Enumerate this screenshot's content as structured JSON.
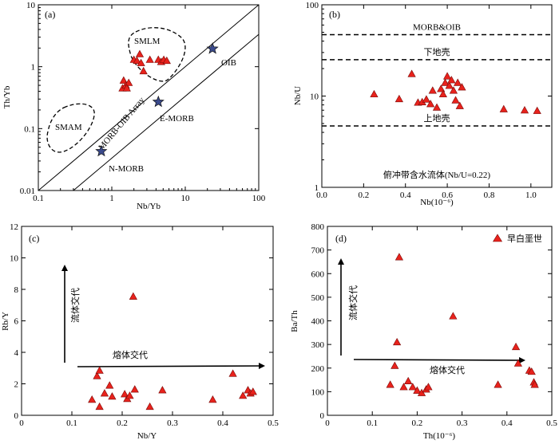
{
  "colors": {
    "marker_fill": "#e8221c",
    "marker_stroke": "#7a0a08",
    "star_fill": "#3a4a8c",
    "axis": "#000000"
  },
  "chart_data": [
    {
      "id": "a",
      "type": "scatter",
      "panel_label": "(a)",
      "xlabel": "Nb/Yb",
      "ylabel": "Th/Yb",
      "xscale": "log",
      "yscale": "log",
      "xlim": [
        0.1,
        100
      ],
      "ylim": [
        0.01,
        10
      ],
      "x_ticks": [
        0.1,
        1,
        10,
        100
      ],
      "x_tick_labels": [
        "0.1",
        "1",
        "10",
        "100"
      ],
      "y_ticks": [
        0.01,
        0.1,
        1,
        10
      ],
      "y_tick_labels": [
        "0.01",
        "0.1",
        "1",
        "10"
      ],
      "annotations": {
        "smlm": "SMLM",
        "smam": "SMAM",
        "array": "MORB-OIB Array",
        "oib": "OIB",
        "emorb": "E-MORB",
        "nmorb": "N-MORB"
      },
      "reference_points": [
        {
          "label": "N-MORB",
          "x": 0.72,
          "y": 0.043
        },
        {
          "label": "E-MORB",
          "x": 4.3,
          "y": 0.27
        },
        {
          "label": "OIB",
          "x": 23.5,
          "y": 1.95
        }
      ],
      "points": [
        {
          "x": 1.4,
          "y": 0.45
        },
        {
          "x": 1.45,
          "y": 0.6
        },
        {
          "x": 1.55,
          "y": 0.5
        },
        {
          "x": 1.7,
          "y": 0.55
        },
        {
          "x": 1.6,
          "y": 0.45
        },
        {
          "x": 2.0,
          "y": 1.3
        },
        {
          "x": 2.2,
          "y": 1.25
        },
        {
          "x": 2.4,
          "y": 1.6
        },
        {
          "x": 2.7,
          "y": 0.85
        },
        {
          "x": 3.3,
          "y": 1.3
        },
        {
          "x": 4.3,
          "y": 1.3
        },
        {
          "x": 4.7,
          "y": 1.2
        },
        {
          "x": 5.1,
          "y": 1.3
        },
        {
          "x": 5.6,
          "y": 1.25
        },
        {
          "x": 2.5,
          "y": 1.15
        }
      ]
    },
    {
      "id": "b",
      "type": "scatter",
      "panel_label": "(b)",
      "xlabel": "Nb(10⁻⁶)",
      "ylabel": "Nb/U",
      "xscale": "linear",
      "yscale": "log",
      "xlim": [
        0,
        1.1
      ],
      "ylim": [
        1,
        100
      ],
      "x_ticks": [
        0,
        0.2,
        0.4,
        0.6,
        0.8,
        1.0
      ],
      "x_tick_labels": [
        "0.0",
        "0.2",
        "0.4",
        "0.6",
        "0.8",
        "1.0"
      ],
      "y_ticks": [
        1,
        10,
        100
      ],
      "y_tick_labels": [
        "1",
        "10",
        "100"
      ],
      "reference_lines": [
        {
          "label": "MORB&OIB",
          "y": 47
        },
        {
          "label": "下地壳",
          "y": 25
        },
        {
          "label": "上地壳",
          "y": 4.7
        }
      ],
      "note": "俯冲带含水流体(Nb/U=0.22)",
      "points": [
        {
          "x": 0.25,
          "y": 10.5
        },
        {
          "x": 0.37,
          "y": 9.3
        },
        {
          "x": 0.43,
          "y": 17.5
        },
        {
          "x": 0.46,
          "y": 8.5
        },
        {
          "x": 0.48,
          "y": 8.6
        },
        {
          "x": 0.5,
          "y": 9.2
        },
        {
          "x": 0.52,
          "y": 8.2
        },
        {
          "x": 0.53,
          "y": 11.5
        },
        {
          "x": 0.55,
          "y": 7.5
        },
        {
          "x": 0.57,
          "y": 12.0
        },
        {
          "x": 0.58,
          "y": 10.5
        },
        {
          "x": 0.59,
          "y": 14.0
        },
        {
          "x": 0.6,
          "y": 16.5
        },
        {
          "x": 0.61,
          "y": 13.0
        },
        {
          "x": 0.62,
          "y": 15.0
        },
        {
          "x": 0.63,
          "y": 11.5
        },
        {
          "x": 0.64,
          "y": 9.0
        },
        {
          "x": 0.65,
          "y": 14.0
        },
        {
          "x": 0.66,
          "y": 7.8
        },
        {
          "x": 0.67,
          "y": 12.5
        },
        {
          "x": 0.87,
          "y": 7.2
        },
        {
          "x": 0.97,
          "y": 7.0
        },
        {
          "x": 1.03,
          "y": 6.9
        }
      ]
    },
    {
      "id": "c",
      "type": "scatter",
      "panel_label": "(c)",
      "xlabel": "Nb/Y",
      "ylabel": "Rb/Y",
      "xscale": "linear",
      "yscale": "linear",
      "xlim": [
        0,
        0.5
      ],
      "ylim": [
        0,
        12
      ],
      "x_ticks": [
        0,
        0.1,
        0.2,
        0.3,
        0.4,
        0.5
      ],
      "x_tick_labels": [
        "0",
        "0.1",
        "0.2",
        "0.3",
        "0.4",
        "0.5"
      ],
      "y_ticks": [
        0,
        2,
        4,
        6,
        8,
        10,
        12
      ],
      "y_tick_labels": [
        "0",
        "2",
        "4",
        "6",
        "8",
        "10",
        "12"
      ],
      "arrows": {
        "fluid": "流体交代",
        "melt": "熔体交代"
      },
      "points": [
        {
          "x": 0.14,
          "y": 1.0
        },
        {
          "x": 0.15,
          "y": 2.5
        },
        {
          "x": 0.155,
          "y": 2.85
        },
        {
          "x": 0.155,
          "y": 0.55
        },
        {
          "x": 0.165,
          "y": 1.4
        },
        {
          "x": 0.175,
          "y": 1.9
        },
        {
          "x": 0.18,
          "y": 1.2
        },
        {
          "x": 0.205,
          "y": 1.35
        },
        {
          "x": 0.21,
          "y": 1.05
        },
        {
          "x": 0.215,
          "y": 1.25
        },
        {
          "x": 0.225,
          "y": 1.65
        },
        {
          "x": 0.222,
          "y": 7.55
        },
        {
          "x": 0.255,
          "y": 0.55
        },
        {
          "x": 0.28,
          "y": 1.6
        },
        {
          "x": 0.38,
          "y": 1.0
        },
        {
          "x": 0.42,
          "y": 2.65
        },
        {
          "x": 0.44,
          "y": 1.25
        },
        {
          "x": 0.45,
          "y": 1.6
        },
        {
          "x": 0.455,
          "y": 1.4
        },
        {
          "x": 0.46,
          "y": 1.5
        }
      ]
    },
    {
      "id": "d",
      "type": "scatter",
      "panel_label": "(d)",
      "xlabel": "Th(10⁻⁶)",
      "ylabel": "Ba/Th",
      "xscale": "linear",
      "yscale": "linear",
      "xlim": [
        0,
        0.5
      ],
      "ylim": [
        0,
        800
      ],
      "x_ticks": [
        0,
        0.1,
        0.2,
        0.3,
        0.4,
        0.5
      ],
      "x_tick_labels": [
        "0",
        "0.1",
        "0.2",
        "0.3",
        "0.4",
        "0.5"
      ],
      "y_ticks": [
        0,
        100,
        200,
        300,
        400,
        500,
        600,
        700,
        800
      ],
      "y_tick_labels": [
        "0",
        "100",
        "200",
        "300",
        "400",
        "500",
        "600",
        "700",
        "800"
      ],
      "legend": {
        "label": "早白垩世",
        "position": "top-right"
      },
      "arrows": {
        "fluid": "流体交代",
        "melt": "熔体交代"
      },
      "points": [
        {
          "x": 0.14,
          "y": 130
        },
        {
          "x": 0.15,
          "y": 210
        },
        {
          "x": 0.155,
          "y": 310
        },
        {
          "x": 0.16,
          "y": 670
        },
        {
          "x": 0.17,
          "y": 120
        },
        {
          "x": 0.18,
          "y": 145
        },
        {
          "x": 0.19,
          "y": 120
        },
        {
          "x": 0.2,
          "y": 105
        },
        {
          "x": 0.21,
          "y": 95
        },
        {
          "x": 0.22,
          "y": 110
        },
        {
          "x": 0.225,
          "y": 120
        },
        {
          "x": 0.28,
          "y": 420
        },
        {
          "x": 0.38,
          "y": 130
        },
        {
          "x": 0.42,
          "y": 290
        },
        {
          "x": 0.425,
          "y": 220
        },
        {
          "x": 0.45,
          "y": 190
        },
        {
          "x": 0.455,
          "y": 185
        },
        {
          "x": 0.46,
          "y": 140
        },
        {
          "x": 0.462,
          "y": 130
        }
      ]
    }
  ]
}
